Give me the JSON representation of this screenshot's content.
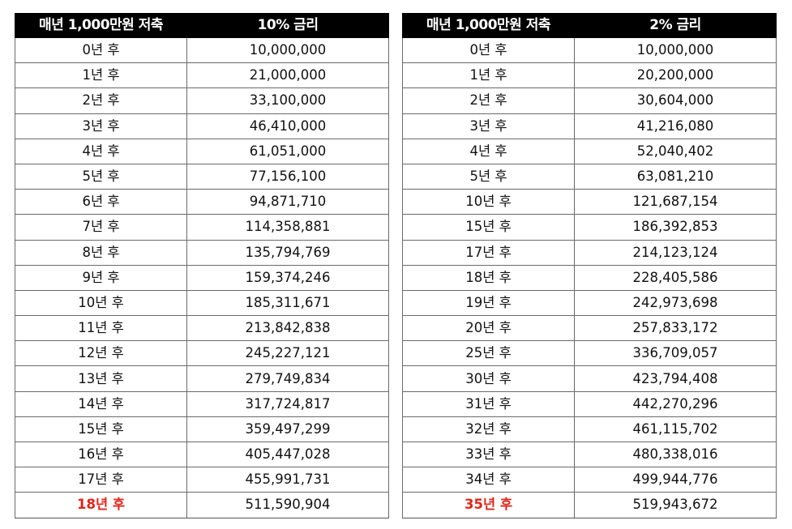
{
  "left_table": {
    "headers": [
      "매년 1,000만원 저축",
      "10% 금리"
    ],
    "rows": [
      {
        "year": "0년 후",
        "amount": "10,000,000"
      },
      {
        "year": "1년 후",
        "amount": "21,000,000"
      },
      {
        "year": "2년 후",
        "amount": "33,100,000"
      },
      {
        "year": "3년 후",
        "amount": "46,410,000"
      },
      {
        "year": "4년 후",
        "amount": "61,051,000"
      },
      {
        "year": "5년 후",
        "amount": "77,156,100"
      },
      {
        "year": "6년 후",
        "amount": "94,871,710"
      },
      {
        "year": "7년 후",
        "amount": "114,358,881"
      },
      {
        "year": "8년 후",
        "amount": "135,794,769"
      },
      {
        "year": "9년 후",
        "amount": "159,374,246"
      },
      {
        "year": "10년 후",
        "amount": "185,311,671"
      },
      {
        "year": "11년 후",
        "amount": "213,842,838"
      },
      {
        "year": "12년 후",
        "amount": "245,227,121"
      },
      {
        "year": "13년 후",
        "amount": "279,749,834"
      },
      {
        "year": "14년 후",
        "amount": "317,724,817"
      },
      {
        "year": "15년 후",
        "amount": "359,497,299"
      },
      {
        "year": "16년 후",
        "amount": "405,447,028"
      },
      {
        "year": "17년 후",
        "amount": "455,991,731"
      },
      {
        "year": "18년 후",
        "amount": "511,590,904",
        "highlight": true
      }
    ]
  },
  "right_table": {
    "headers": [
      "매년 1,000만원 저축",
      "2% 금리"
    ],
    "rows": [
      {
        "year": "0년 후",
        "amount": "10,000,000"
      },
      {
        "year": "1년 후",
        "amount": "20,200,000"
      },
      {
        "year": "2년 후",
        "amount": "30,604,000"
      },
      {
        "year": "3년 후",
        "amount": "41,216,080"
      },
      {
        "year": "4년 후",
        "amount": "52,040,402"
      },
      {
        "year": "5년 후",
        "amount": "63,081,210"
      },
      {
        "year": "10년 후",
        "amount": "121,687,154"
      },
      {
        "year": "15년 후",
        "amount": "186,392,853"
      },
      {
        "year": "17년 후",
        "amount": "214,123,124"
      },
      {
        "year": "18년 후",
        "amount": "228,405,586"
      },
      {
        "year": "19년 후",
        "amount": "242,973,698"
      },
      {
        "year": "20년 후",
        "amount": "257,833,172"
      },
      {
        "year": "25년 후",
        "amount": "336,709,057"
      },
      {
        "year": "30년 후",
        "amount": "423,794,408"
      },
      {
        "year": "31년 후",
        "amount": "442,270,296"
      },
      {
        "year": "32년 후",
        "amount": "461,115,702"
      },
      {
        "year": "33년 후",
        "amount": "480,338,016"
      },
      {
        "year": "34년 후",
        "amount": "499,944,776"
      },
      {
        "year": "35년 후",
        "amount": "519,943,672",
        "highlight": true
      }
    ]
  },
  "colors": {
    "header_bg": "#000000",
    "header_text": "#ffffff",
    "highlight_text": "#e0251b",
    "border": "#555555"
  }
}
